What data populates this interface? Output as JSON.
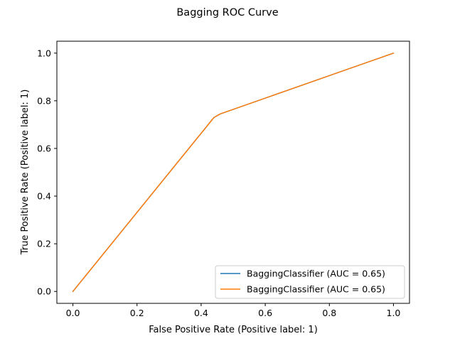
{
  "chart_data": {
    "type": "line",
    "title": "Bagging ROC Curve",
    "xlabel": "False Positive Rate (Positive label: 1)",
    "ylabel": "True Positive Rate (Positive label: 1)",
    "xlim": [
      -0.05,
      1.05
    ],
    "ylim": [
      -0.05,
      1.05
    ],
    "x_ticks": [
      0.0,
      0.2,
      0.4,
      0.6,
      0.8,
      1.0
    ],
    "y_ticks": [
      0.0,
      0.2,
      0.4,
      0.6,
      0.8,
      1.0
    ],
    "x_tick_labels": [
      "0.0",
      "0.2",
      "0.4",
      "0.6",
      "0.8",
      "1.0"
    ],
    "y_tick_labels": [
      "0.0",
      "0.2",
      "0.4",
      "0.6",
      "0.8",
      "1.0"
    ],
    "grid": false,
    "legend_position": "lower-right",
    "series": [
      {
        "name": "BaggingClassifier (AUC = 0.65)",
        "color": "#1f77b4",
        "x": [
          0.0,
          0.44,
          0.46,
          1.0
        ],
        "y": [
          0.0,
          0.73,
          0.745,
          1.0
        ]
      },
      {
        "name": "BaggingClassifier (AUC = 0.65)",
        "color": "#ff7f0e",
        "x": [
          0.0,
          0.44,
          0.46,
          1.0
        ],
        "y": [
          0.0,
          0.73,
          0.745,
          1.0
        ]
      }
    ]
  }
}
